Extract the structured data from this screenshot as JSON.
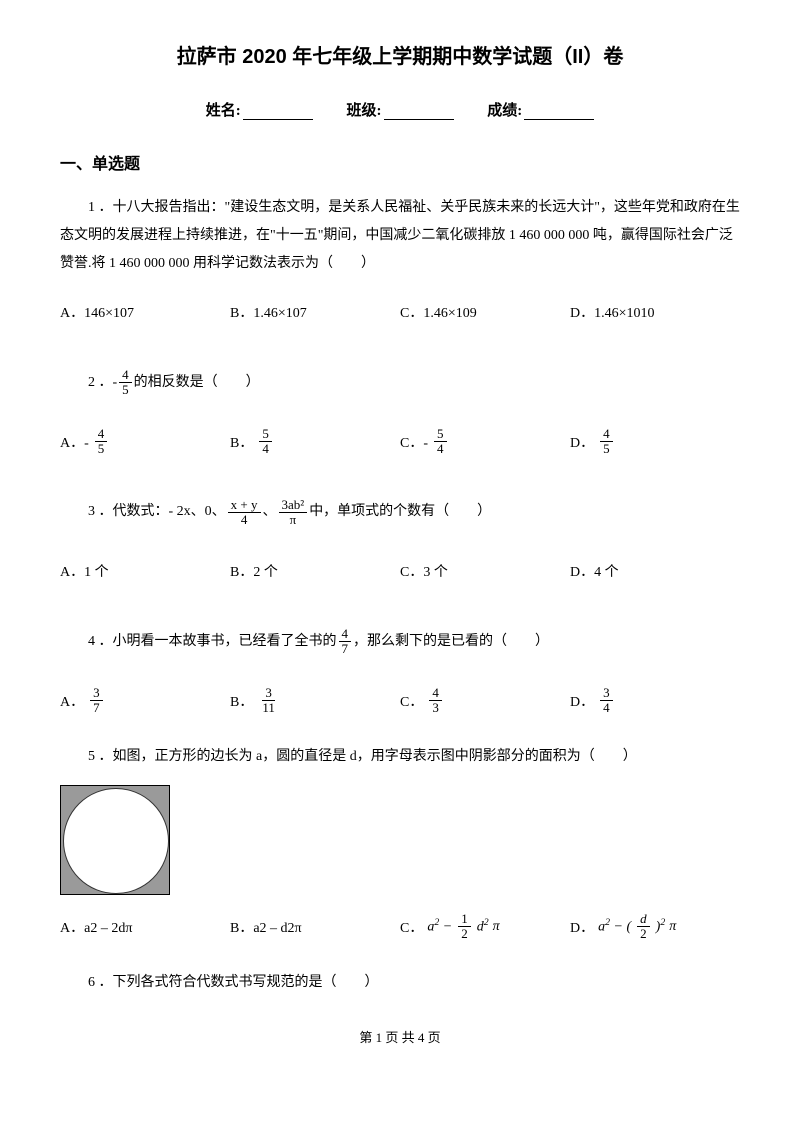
{
  "title": "拉萨市 2020 年七年级上学期期中数学试题（II）卷",
  "info": {
    "name_label": "姓名:",
    "class_label": "班级:",
    "score_label": "成绩:"
  },
  "section1": "一、单选题",
  "q1": {
    "text": "1 ．十八大报告指出：\"建设生态文明，是关系人民福祉、关乎民族未来的长远大计\"，这些年党和政府在生态文明的发展进程上持续推进，在\"十一五\"期间，中国减少二氧化碳排放 1 460 000 000 吨，赢得国际社会广泛赞誉.将 1 460 000 000 用科学记数法表示为（　　）",
    "A": "A．146×107",
    "B": "B．1.46×107",
    "C": "C．1.46×109",
    "D": "D．1.46×1010"
  },
  "q2": {
    "pre": "2 ．-",
    "num": "4",
    "den": "5",
    "post": " 的相反数是（　　）",
    "A_pre": "A．-",
    "A_num": "4",
    "A_den": "5",
    "B_pre": "B．",
    "B_num": "5",
    "B_den": "4",
    "C_pre": "C．-",
    "C_num": "5",
    "C_den": "4",
    "D_pre": "D．",
    "D_num": "4",
    "D_den": "5"
  },
  "q3": {
    "pre": "3 ．代数式：- 2x、0、",
    "f1_num": "x + y",
    "f1_den": "4",
    "mid": " 、 ",
    "f2_num": "3ab²",
    "f2_den": "π",
    "post": " 中，单项式的个数有（　　）",
    "A": "A．1 个",
    "B": "B．2 个",
    "C": "C．3 个",
    "D": "D．4 个"
  },
  "q4": {
    "pre": "4 ．小明看一本故事书，已经看了全书的",
    "num": "4",
    "den": "7",
    "post": "，那么剩下的是已看的（　　）",
    "A_pre": "A．",
    "A_num": "3",
    "A_den": "7",
    "B_pre": "B．",
    "B_num": "3",
    "B_den": "11",
    "C_pre": "C．",
    "C_num": "4",
    "C_den": "3",
    "D_pre": "D．",
    "D_num": "3",
    "D_den": "4"
  },
  "q5": {
    "text": "5 ．如图，正方形的边长为 a，圆的直径是 d，用字母表示图中阴影部分的面积为（　　）",
    "A": "A．a2 – 2dπ",
    "B": "B．a2 – d2π",
    "C_pre": "C．",
    "C_expr_a": "a",
    "C_f_num": "1",
    "C_f_den": "2",
    "C_expr_d": "d",
    "C_pi": "π",
    "D_pre": "D．",
    "D_expr_a": "a",
    "D_f_num": "d",
    "D_f_den": "2",
    "D_pi": "π"
  },
  "q6": {
    "text": "6 ．下列各式符合代数式书写规范的是（　　）"
  },
  "footer": "第 1 页 共 4 页"
}
